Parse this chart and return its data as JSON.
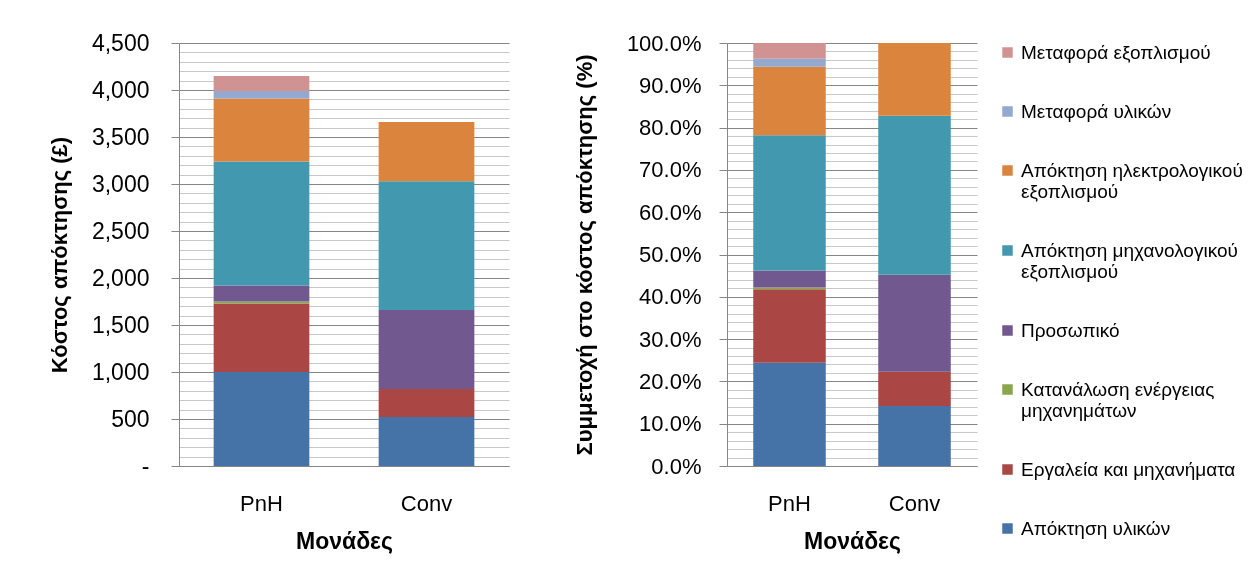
{
  "chart_data": [
    {
      "type": "bar",
      "stacked": true,
      "categories": [
        "PnH",
        "Conv"
      ],
      "xlabel": "Μονάδες",
      "ylabel": "Κόστος απόκτησης (£)",
      "ylim": [
        0,
        4500
      ],
      "yticks": [
        {
          "value": 0,
          "label": "-"
        },
        {
          "value": 100,
          "label": null
        },
        {
          "value": 200,
          "label": null
        },
        {
          "value": 300,
          "label": null
        },
        {
          "value": 400,
          "label": null
        },
        {
          "value": 500,
          "label": "500"
        },
        {
          "value": 600,
          "label": null
        },
        {
          "value": 700,
          "label": null
        },
        {
          "value": 800,
          "label": null
        },
        {
          "value": 900,
          "label": null
        },
        {
          "value": 1000,
          "label": "1,000"
        },
        {
          "value": 1100,
          "label": null
        },
        {
          "value": 1200,
          "label": null
        },
        {
          "value": 1300,
          "label": null
        },
        {
          "value": 1400,
          "label": null
        },
        {
          "value": 1500,
          "label": "1,500"
        },
        {
          "value": 1600,
          "label": null
        },
        {
          "value": 1700,
          "label": null
        },
        {
          "value": 1800,
          "label": null
        },
        {
          "value": 1900,
          "label": null
        },
        {
          "value": 2000,
          "label": "2,000"
        },
        {
          "value": 2100,
          "label": null
        },
        {
          "value": 2200,
          "label": null
        },
        {
          "value": 2300,
          "label": null
        },
        {
          "value": 2400,
          "label": null
        },
        {
          "value": 2500,
          "label": "2,500"
        },
        {
          "value": 2600,
          "label": null
        },
        {
          "value": 2700,
          "label": null
        },
        {
          "value": 2800,
          "label": null
        },
        {
          "value": 2900,
          "label": null
        },
        {
          "value": 3000,
          "label": "3,000"
        },
        {
          "value": 3100,
          "label": null
        },
        {
          "value": 3200,
          "label": null
        },
        {
          "value": 3300,
          "label": null
        },
        {
          "value": 3400,
          "label": null
        },
        {
          "value": 3500,
          "label": "3,500"
        },
        {
          "value": 3600,
          "label": null
        },
        {
          "value": 3700,
          "label": null
        },
        {
          "value": 3800,
          "label": null
        },
        {
          "value": 3900,
          "label": null
        },
        {
          "value": 4000,
          "label": "4,000"
        },
        {
          "value": 4100,
          "label": null
        },
        {
          "value": 4200,
          "label": null
        },
        {
          "value": 4300,
          "label": null
        },
        {
          "value": 4400,
          "label": null
        },
        {
          "value": 4500,
          "label": "4,500"
        }
      ],
      "grid": "y",
      "legend": "right",
      "series": [
        {
          "name": "Απόκτηση υλικών",
          "color": "#4572a7",
          "values": [
            1000,
            520
          ]
        },
        {
          "name": "Εργαλεία και μηχανήματα",
          "color": "#aa4643",
          "values": [
            730,
            300
          ]
        },
        {
          "name": "Κατανάλωση ενέργειας μηχανημάτων",
          "color": "#89a54e",
          "values": [
            20,
            null
          ]
        },
        {
          "name": "Προσωπικό",
          "color": "#71588f",
          "values": [
            170,
            840
          ]
        },
        {
          "name": "Απόκτηση μηχανολογικού εξοπλισμού",
          "color": "#4198af",
          "values": [
            1320,
            1370
          ]
        },
        {
          "name": "Απόκτηση ηλεκτρολογικού εξοπλισμού",
          "color": "#db843d",
          "values": [
            670,
            630
          ]
        },
        {
          "name": "Μεταφορά υλικών",
          "color": "#93a9cf",
          "values": [
            80,
            null
          ]
        },
        {
          "name": "Μεταφορά εξοπλισμού",
          "color": "#d19392",
          "values": [
            160,
            null
          ]
        }
      ]
    },
    {
      "type": "bar",
      "stacked": true,
      "categories": [
        "PnH",
        "Conv"
      ],
      "xlabel": "Μονάδες",
      "ylabel": "Συμμετοχή στο κόστος απόκτησης (%)",
      "ylim": [
        0,
        100
      ],
      "yticks": [
        {
          "value": 0,
          "label": "0.0%"
        },
        {
          "value": 2,
          "label": null
        },
        {
          "value": 4,
          "label": null
        },
        {
          "value": 6,
          "label": null
        },
        {
          "value": 8,
          "label": null
        },
        {
          "value": 10,
          "label": "10.0%"
        },
        {
          "value": 12,
          "label": null
        },
        {
          "value": 14,
          "label": null
        },
        {
          "value": 16,
          "label": null
        },
        {
          "value": 18,
          "label": null
        },
        {
          "value": 20,
          "label": "20.0%"
        },
        {
          "value": 22,
          "label": null
        },
        {
          "value": 24,
          "label": null
        },
        {
          "value": 26,
          "label": null
        },
        {
          "value": 28,
          "label": null
        },
        {
          "value": 30,
          "label": "30.0%"
        },
        {
          "value": 32,
          "label": null
        },
        {
          "value": 34,
          "label": null
        },
        {
          "value": 36,
          "label": null
        },
        {
          "value": 38,
          "label": null
        },
        {
          "value": 40,
          "label": "40.0%"
        },
        {
          "value": 42,
          "label": null
        },
        {
          "value": 44,
          "label": null
        },
        {
          "value": 46,
          "label": null
        },
        {
          "value": 48,
          "label": null
        },
        {
          "value": 50,
          "label": "50.0%"
        },
        {
          "value": 52,
          "label": null
        },
        {
          "value": 54,
          "label": null
        },
        {
          "value": 56,
          "label": null
        },
        {
          "value": 58,
          "label": null
        },
        {
          "value": 60,
          "label": "60.0%"
        },
        {
          "value": 62,
          "label": null
        },
        {
          "value": 64,
          "label": null
        },
        {
          "value": 66,
          "label": null
        },
        {
          "value": 68,
          "label": null
        },
        {
          "value": 70,
          "label": "70.0%"
        },
        {
          "value": 72,
          "label": null
        },
        {
          "value": 74,
          "label": null
        },
        {
          "value": 76,
          "label": null
        },
        {
          "value": 78,
          "label": null
        },
        {
          "value": 80,
          "label": "80.0%"
        },
        {
          "value": 82,
          "label": null
        },
        {
          "value": 84,
          "label": null
        },
        {
          "value": 86,
          "label": null
        },
        {
          "value": 88,
          "label": null
        },
        {
          "value": 90,
          "label": "90.0%"
        },
        {
          "value": 92,
          "label": null
        },
        {
          "value": 94,
          "label": null
        },
        {
          "value": 96,
          "label": null
        },
        {
          "value": 98,
          "label": null
        },
        {
          "value": 100,
          "label": "100.0%"
        }
      ],
      "grid": "y",
      "legend": "right",
      "series": [
        {
          "name": "Απόκτηση υλικών",
          "color": "#4572a7",
          "values": [
            24.4,
            14.2
          ]
        },
        {
          "name": "Εργαλεία και μηχανήματα",
          "color": "#aa4643",
          "values": [
            17.4,
            8.1
          ]
        },
        {
          "name": "Κατανάλωση ενέργειας μηχανημάτων",
          "color": "#89a54e",
          "values": [
            0.4,
            null
          ]
        },
        {
          "name": "Προσωπικό",
          "color": "#71588f",
          "values": [
            4.0,
            22.9
          ]
        },
        {
          "name": "Απόκτηση μηχανολογικού εξοπλισμού",
          "color": "#4198af",
          "values": [
            32.0,
            37.6
          ]
        },
        {
          "name": "Απόκτηση ηλεκτρολογικού εξοπλισμού",
          "color": "#db843d",
          "values": [
            16.2,
            17.2
          ]
        },
        {
          "name": "Μεταφορά υλικών",
          "color": "#93a9cf",
          "values": [
            1.9,
            null
          ]
        },
        {
          "name": "Μεταφορά εξοπλισμού",
          "color": "#d19392",
          "values": [
            3.7,
            null
          ]
        }
      ]
    }
  ]
}
